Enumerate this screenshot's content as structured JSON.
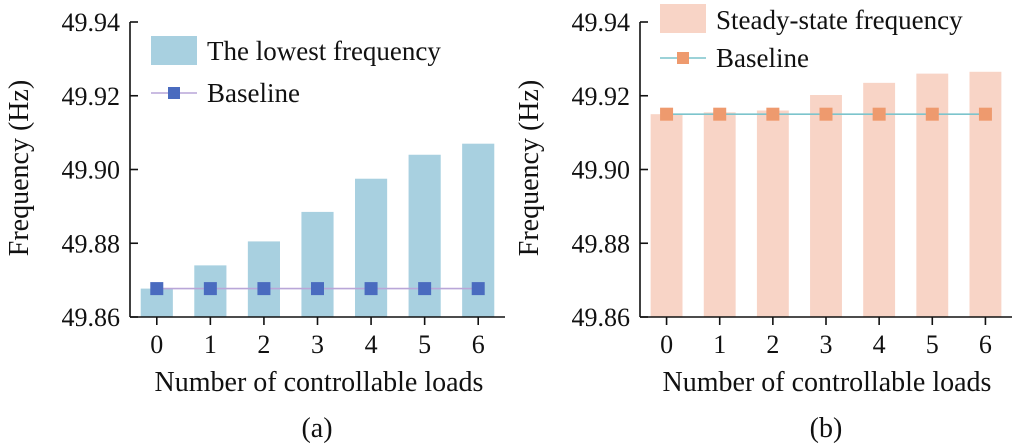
{
  "chart_data": [
    {
      "type": "bar",
      "panel_label": "(a)",
      "xlabel": "Number of controllable loads",
      "ylabel": "Frequency (Hz)",
      "categories": [
        "0",
        "1",
        "2",
        "3",
        "4",
        "5",
        "6"
      ],
      "ylim": [
        49.86,
        49.94
      ],
      "yticks": [
        "49.86",
        "49.88",
        "49.90",
        "49.92",
        "49.94"
      ],
      "series": [
        {
          "name": "The lowest frequency",
          "kind": "bar",
          "color": "#a8d0e0",
          "values": [
            49.8677,
            49.874,
            49.8805,
            49.8885,
            49.8975,
            49.904,
            49.907
          ]
        },
        {
          "name": "Baseline",
          "kind": "line",
          "color": "#4a6bbf",
          "line_color": "#b9a6d8",
          "marker": "square",
          "values": [
            49.8677,
            49.8677,
            49.8677,
            49.8677,
            49.8677,
            49.8677,
            49.8677
          ]
        }
      ],
      "legend_position": "top-left"
    },
    {
      "type": "bar",
      "panel_label": "(b)",
      "xlabel": "Number of controllable loads",
      "ylabel": "Frequency (Hz)",
      "categories": [
        "0",
        "1",
        "2",
        "3",
        "4",
        "5",
        "6"
      ],
      "ylim": [
        49.86,
        49.94
      ],
      "yticks": [
        "49.86",
        "49.88",
        "49.90",
        "49.92",
        "49.94"
      ],
      "series": [
        {
          "name": "Steady-state frequency",
          "kind": "bar",
          "color": "#f8d4c6",
          "values": [
            49.915,
            49.9155,
            49.916,
            49.9202,
            49.9235,
            49.926,
            49.9265
          ]
        },
        {
          "name": "Baseline",
          "kind": "line",
          "color": "#ee9a6e",
          "line_color": "#7cc4cc",
          "marker": "square",
          "values": [
            49.915,
            49.915,
            49.915,
            49.915,
            49.915,
            49.915,
            49.915
          ]
        }
      ],
      "legend_position": "top-left"
    }
  ]
}
